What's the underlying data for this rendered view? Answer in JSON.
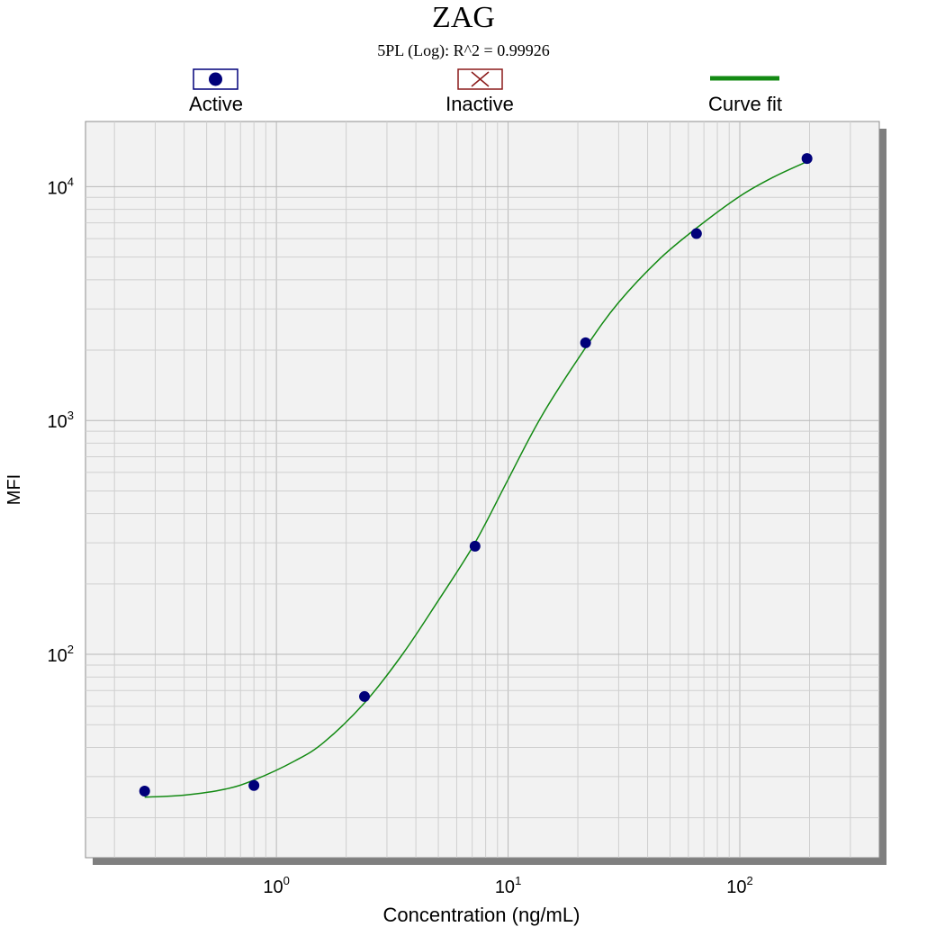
{
  "chart_data": {
    "type": "scatter",
    "title": "ZAG",
    "subtitle": "5PL (Log): R^2 = 0.99926",
    "xlabel": "Concentration (ng/mL)",
    "ylabel": "MFI",
    "x_scale": "log",
    "y_scale": "log",
    "xlim": [
      0.15,
      400
    ],
    "ylim": [
      13.5,
      19000
    ],
    "grid": true,
    "legend_placement": "top",
    "x_ticks": [
      {
        "value": 1,
        "base": "10",
        "exp": "0"
      },
      {
        "value": 10,
        "base": "10",
        "exp": "1"
      },
      {
        "value": 100,
        "base": "10",
        "exp": "2"
      }
    ],
    "y_ticks": [
      {
        "value": 100,
        "base": "10",
        "exp": "2"
      },
      {
        "value": 1000,
        "base": "10",
        "exp": "3"
      },
      {
        "value": 10000,
        "base": "10",
        "exp": "4"
      }
    ],
    "legend": [
      {
        "label": "Active",
        "marker": "filled-circle",
        "color": "#00007a"
      },
      {
        "label": "Inactive",
        "marker": "x-box",
        "color": "#8b1a1a"
      },
      {
        "label": "Curve fit",
        "marker": "line",
        "color": "#138a13"
      }
    ],
    "series": [
      {
        "name": "Active",
        "marker": "filled-circle",
        "color": "#00007a",
        "points": [
          {
            "x": 0.27,
            "y": 26
          },
          {
            "x": 0.8,
            "y": 27.5
          },
          {
            "x": 2.4,
            "y": 66
          },
          {
            "x": 7.2,
            "y": 290
          },
          {
            "x": 21.6,
            "y": 2150
          },
          {
            "x": 65,
            "y": 6300
          },
          {
            "x": 195,
            "y": 13200
          }
        ]
      },
      {
        "name": "Curve fit",
        "type": "line",
        "color": "#138a13",
        "points": [
          {
            "x": 0.27,
            "y": 24.5
          },
          {
            "x": 0.4,
            "y": 25
          },
          {
            "x": 0.6,
            "y": 26.5
          },
          {
            "x": 0.8,
            "y": 29
          },
          {
            "x": 1.2,
            "y": 35
          },
          {
            "x": 1.6,
            "y": 42
          },
          {
            "x": 2.4,
            "y": 62
          },
          {
            "x": 3.5,
            "y": 100
          },
          {
            "x": 5,
            "y": 170
          },
          {
            "x": 7.2,
            "y": 300
          },
          {
            "x": 10,
            "y": 560
          },
          {
            "x": 14,
            "y": 1050
          },
          {
            "x": 21.6,
            "y": 2050
          },
          {
            "x": 30,
            "y": 3200
          },
          {
            "x": 45,
            "y": 4900
          },
          {
            "x": 65,
            "y": 6650
          },
          {
            "x": 100,
            "y": 9100
          },
          {
            "x": 140,
            "y": 11000
          },
          {
            "x": 195,
            "y": 12800
          }
        ]
      }
    ]
  }
}
